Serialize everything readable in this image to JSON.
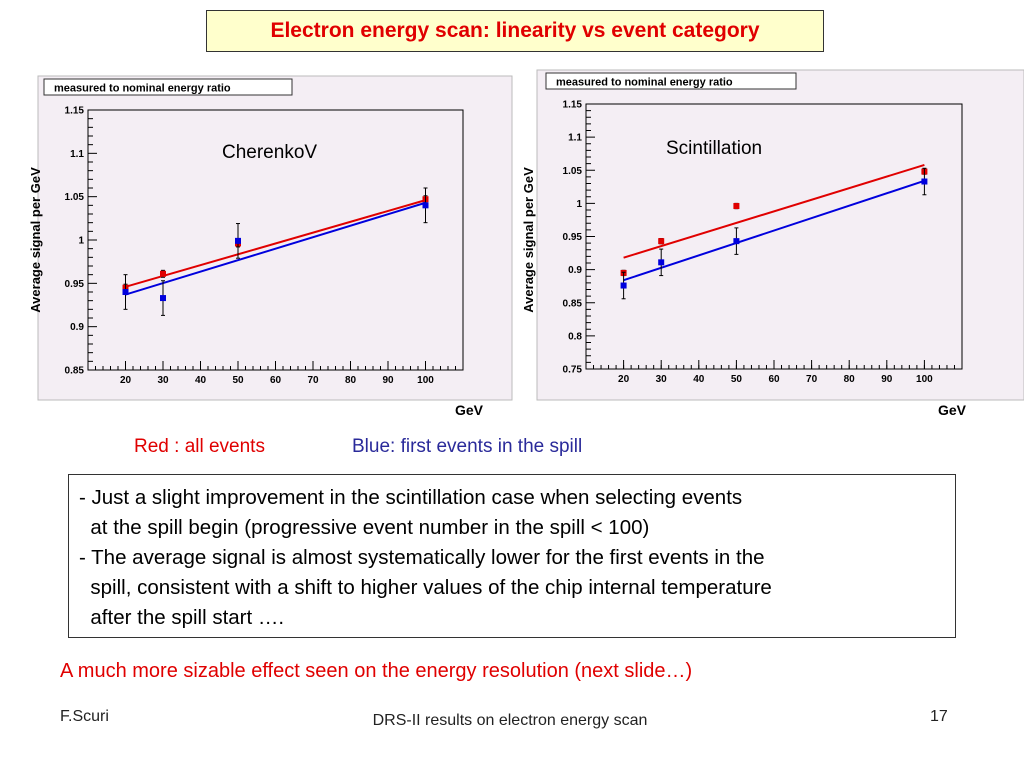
{
  "slide_title": "Electron energy scan: linearity vs event category",
  "legend": {
    "red_text": "Red : all events",
    "blue_text": "Blue: first events in the spill"
  },
  "notes": [
    "- Just a slight improvement in the scintillation case when selecting events\n  at the spill begin (progressive event number in the spill < 100)",
    "- The average signal is almost systematically lower for the first events in the\n  spill, consistent with a shift to higher values of the chip internal temperature\n  after the spill start …."
  ],
  "conclusion": "A much more sizable effect seen on the energy resolution (next slide…)",
  "footer": {
    "author": "F.Scuri",
    "center": "DRS-II results on electron energy scan",
    "page": "17"
  },
  "colors": {
    "red": "#e00000",
    "blue": "#0000dd",
    "plot_bg": "#f4eef4",
    "title_bg": "#ffffcc"
  },
  "chart_data": [
    {
      "type": "scatter",
      "title": "measured to nominal energy ratio",
      "annotation": "CherenkoV",
      "xlabel": "GeV",
      "ylabel": "Average signal per GeV",
      "xlim": [
        10,
        110
      ],
      "ylim": [
        0.85,
        1.15
      ],
      "xticks": [
        20,
        30,
        40,
        50,
        60,
        70,
        80,
        90,
        100
      ],
      "yticks": [
        0.85,
        0.9,
        0.95,
        1,
        1.05,
        1.1,
        1.15
      ],
      "ytick_labels": [
        "0.85",
        "0.9",
        "0.95",
        "1",
        "1.05",
        "1.1",
        "1.15"
      ],
      "grid": false,
      "series": [
        {
          "color": "#e00000",
          "x": [
            20,
            30,
            50,
            100
          ],
          "y": [
            0.945,
            0.961,
            0.996,
            1.047
          ],
          "yerr": [
            0.004,
            0.004,
            0.004,
            0.004
          ],
          "fit": [
            0.946,
            1.046
          ]
        },
        {
          "color": "#0000dd",
          "x": [
            20,
            30,
            50,
            100
          ],
          "y": [
            0.94,
            0.933,
            0.999,
            1.04
          ],
          "yerr": [
            0.02,
            0.02,
            0.02,
            0.02
          ],
          "fit": [
            0.937,
            1.043
          ]
        }
      ]
    },
    {
      "type": "scatter",
      "title": "measured to nominal energy ratio",
      "annotation": "Scintillation",
      "xlabel": "GeV",
      "ylabel": "Average signal per GeV",
      "xlim": [
        10,
        110
      ],
      "ylim": [
        0.75,
        1.15
      ],
      "xticks": [
        20,
        30,
        40,
        50,
        60,
        70,
        80,
        90,
        100
      ],
      "yticks": [
        0.75,
        0.8,
        0.85,
        0.9,
        0.95,
        1,
        1.05,
        1.1,
        1.15
      ],
      "ytick_labels": [
        "0.75",
        "0.8",
        "0.85",
        "0.9",
        "0.95",
        "1",
        "1.05",
        "1.1",
        "1.15"
      ],
      "grid": false,
      "series": [
        {
          "color": "#e00000",
          "x": [
            20,
            30,
            50,
            100
          ],
          "y": [
            0.895,
            0.943,
            0.996,
            1.048
          ],
          "yerr": [
            0.004,
            0.004,
            0.004,
            0.004
          ],
          "fit": [
            0.918,
            1.058
          ]
        },
        {
          "color": "#0000dd",
          "x": [
            20,
            30,
            50,
            100
          ],
          "y": [
            0.876,
            0.911,
            0.943,
            1.033
          ],
          "yerr": [
            0.02,
            0.02,
            0.02,
            0.02
          ],
          "fit": [
            0.884,
            1.034
          ]
        }
      ]
    }
  ]
}
